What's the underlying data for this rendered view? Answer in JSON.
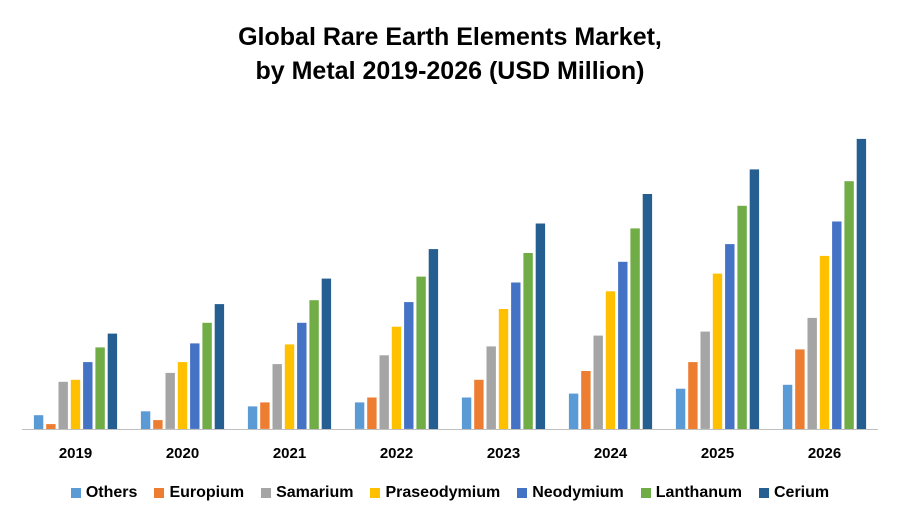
{
  "chart_data": {
    "type": "bar",
    "title_line1": "Global Rare Earth Elements Market,",
    "title_line2": "by Metal 2019-2026 (USD Million)",
    "categories": [
      "2019",
      "2020",
      "2021",
      "2022",
      "2023",
      "2024",
      "2025",
      "2026"
    ],
    "series": [
      {
        "name": "Others",
        "color": "#5B9BD5",
        "values": [
          14,
          18,
          23,
          27,
          32,
          36,
          41,
          45
        ]
      },
      {
        "name": "Europium",
        "color": "#ED7D31",
        "values": [
          5,
          9,
          27,
          32,
          50,
          59,
          68,
          81
        ]
      },
      {
        "name": "Samarium",
        "color": "#A5A5A5",
        "values": [
          48,
          57,
          66,
          75,
          84,
          95,
          99,
          113
        ]
      },
      {
        "name": "Praseodymium",
        "color": "#FFC000",
        "values": [
          50,
          68,
          86,
          104,
          122,
          140,
          158,
          176
        ]
      },
      {
        "name": "Neodymium",
        "color": "#4472C4",
        "values": [
          68,
          87,
          108,
          129,
          149,
          170,
          188,
          211
        ]
      },
      {
        "name": "Lanthanum",
        "color": "#70AD47",
        "values": [
          83,
          108,
          131,
          155,
          179,
          204,
          227,
          252
        ]
      },
      {
        "name": "Cerium",
        "color": "#255E91",
        "values": [
          97,
          127,
          153,
          183,
          209,
          239,
          264,
          295
        ]
      }
    ],
    "ylim": [
      0,
      300
    ],
    "grid": false,
    "legend_position": "bottom"
  }
}
